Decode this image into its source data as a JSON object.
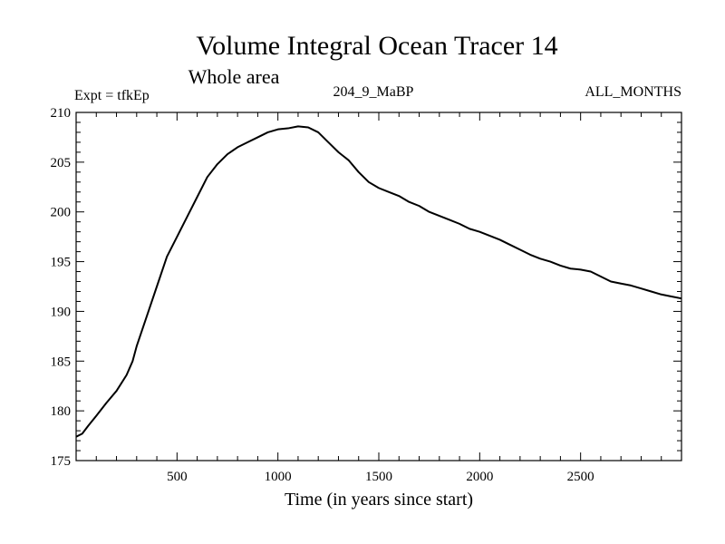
{
  "chart_data": {
    "type": "line",
    "title": "Volume Integral Ocean Tracer 14",
    "subtitle": "Whole area",
    "experiment_label": "Expt = tfkEp",
    "run_label": "204_9_MaBP",
    "months_label": "ALL_MONTHS",
    "xlabel": "Time (in years since start)",
    "ylabel": "",
    "xlim": [
      0,
      3000
    ],
    "ylim": [
      175,
      210
    ],
    "x_ticks": [
      500,
      1000,
      1500,
      2000,
      2500
    ],
    "x_tick_labels": [
      "500",
      "1000",
      "1500",
      "2000",
      "2500"
    ],
    "y_ticks": [
      175,
      180,
      185,
      190,
      195,
      200,
      205,
      210
    ],
    "y_tick_labels": [
      "175",
      "180",
      "185",
      "190",
      "195",
      "200",
      "205",
      "210"
    ],
    "grid": false,
    "series": [
      {
        "color": "#000000",
        "x": [
          0,
          30,
          60,
          100,
          150,
          200,
          250,
          280,
          300,
          350,
          400,
          450,
          500,
          550,
          600,
          650,
          700,
          750,
          800,
          850,
          900,
          950,
          1000,
          1050,
          1100,
          1150,
          1200,
          1250,
          1300,
          1350,
          1400,
          1450,
          1500,
          1550,
          1600,
          1650,
          1700,
          1750,
          1800,
          1850,
          1900,
          1950,
          2000,
          2050,
          2100,
          2150,
          2200,
          2250,
          2300,
          2350,
          2400,
          2450,
          2500,
          2550,
          2600,
          2650,
          2700,
          2750,
          2800,
          2850,
          2900,
          2950,
          3000
        ],
        "y": [
          177.4,
          177.7,
          178.5,
          179.5,
          180.8,
          182.0,
          183.6,
          185.0,
          186.5,
          189.5,
          192.5,
          195.5,
          197.5,
          199.5,
          201.5,
          203.5,
          204.8,
          205.8,
          206.5,
          207.0,
          207.5,
          208.0,
          208.3,
          208.4,
          208.6,
          208.5,
          208.0,
          207.0,
          206.0,
          205.2,
          204.0,
          203.0,
          202.4,
          202.0,
          201.6,
          201.0,
          200.6,
          200.0,
          199.6,
          199.2,
          198.8,
          198.3,
          198.0,
          197.6,
          197.2,
          196.7,
          196.2,
          195.7,
          195.3,
          195.0,
          194.6,
          194.3,
          194.2,
          194.0,
          193.5,
          193.0,
          192.8,
          192.6,
          192.3,
          192.0,
          191.7,
          191.5,
          191.3
        ]
      }
    ]
  }
}
